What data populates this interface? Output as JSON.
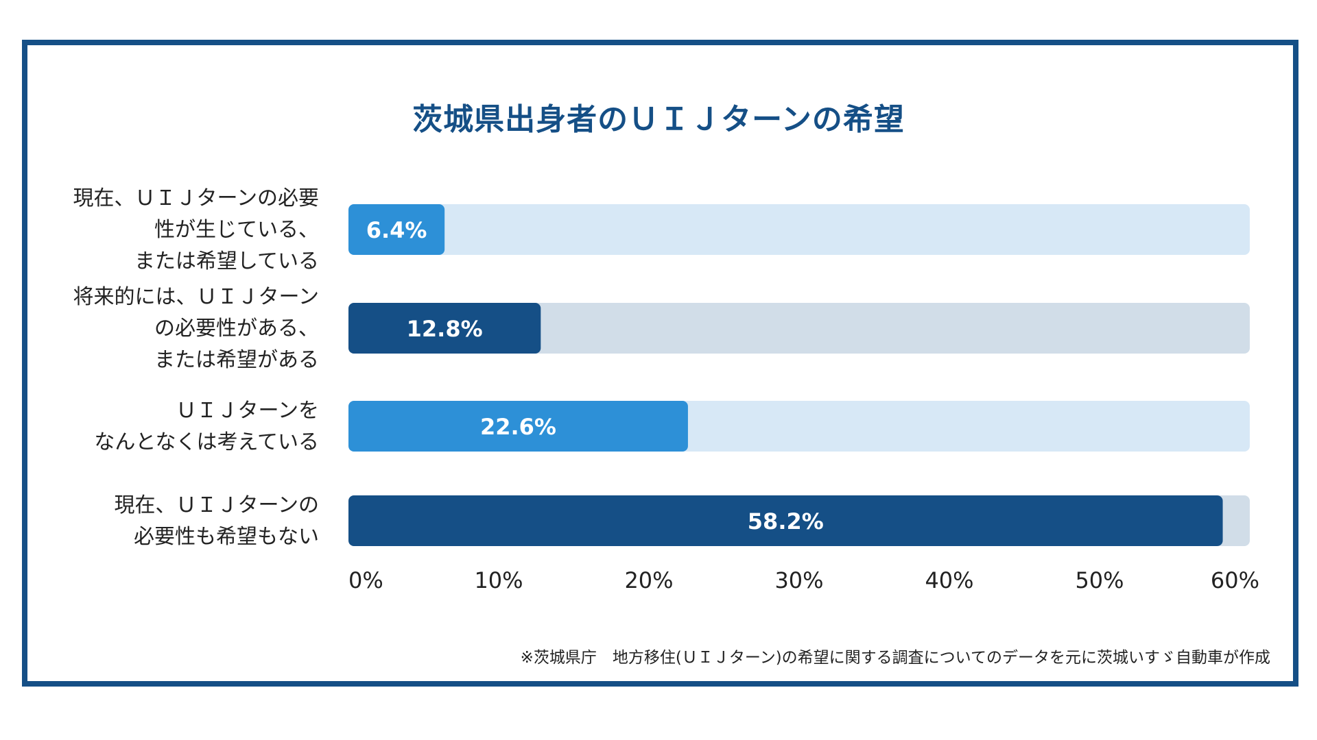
{
  "colors": {
    "frame": "#154f86",
    "title": "#154f86",
    "dark_bar": "#154f86",
    "dark_track": "#d1dde8",
    "light_bar": "#2d90d7",
    "light_track": "#d7e8f6",
    "label_text": "#222222",
    "value_text": "#ffffff"
  },
  "chart_data": {
    "type": "bar",
    "orientation": "horizontal",
    "title": "茨城県出身者のＵＩＪターンの希望",
    "categories": [
      [
        "現在、ＵＩＪターンの必要",
        "性が生じている、",
        "または希望している"
      ],
      [
        "将来的には、ＵＩＪターン",
        "の必要性がある、",
        "または希望がある"
      ],
      [
        "ＵＩＪターンを",
        "なんとなくは考えている"
      ],
      [
        "現在、ＵＩＪターンの",
        "必要性も希望もない"
      ]
    ],
    "values": [
      6.4,
      12.8,
      22.6,
      58.2
    ],
    "value_labels": [
      "6.4%",
      "12.8%",
      "22.6%",
      "58.2%"
    ],
    "bar_styles": [
      "light",
      "dark",
      "light",
      "dark"
    ],
    "xlim": [
      0,
      60
    ],
    "xticks": [
      0,
      10,
      20,
      30,
      40,
      50,
      60
    ],
    "xtick_labels": [
      "0%",
      "10%",
      "20%",
      "30%",
      "40%",
      "50%",
      "60%"
    ],
    "xlabel": "",
    "ylabel": "",
    "grid": false,
    "legend": "none"
  },
  "footnote": "※茨城県庁　地方移住(ＵＩＪターン)の希望に関する調査についてのデータを元に茨城いすゞ自動車が作成"
}
